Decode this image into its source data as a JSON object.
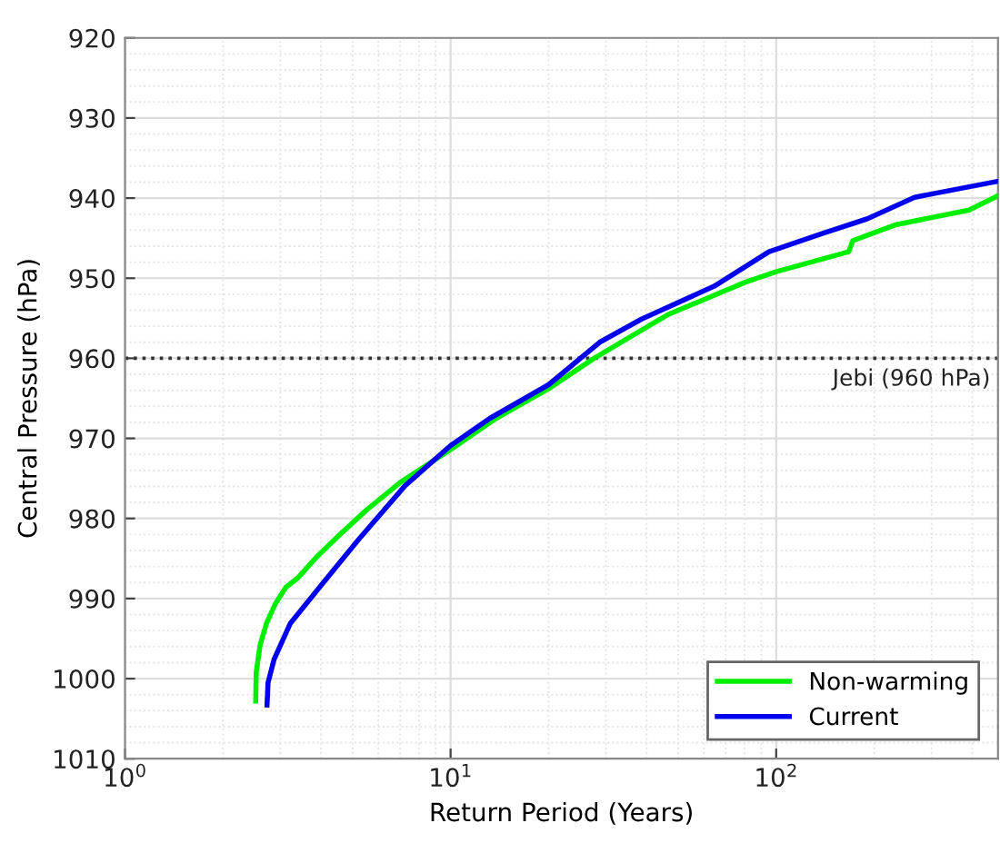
{
  "chart_data": {
    "type": "line",
    "xlabel": "Return Period (Years)",
    "ylabel": "Central Pressure (hPa)",
    "log": "x",
    "xlim": [
      1,
      480
    ],
    "xticks": [
      {
        "value": 1,
        "label": "10$^{0}$"
      },
      {
        "value": 10,
        "label": "10$^{1}$"
      },
      {
        "value": 100,
        "label": "10$^{2}$"
      }
    ],
    "ylim": [
      1010,
      920
    ],
    "yticks": [
      920,
      930,
      940,
      950,
      960,
      970,
      980,
      990,
      1000,
      1010
    ],
    "grid": true,
    "legend": "bottom right",
    "line_style": "solid",
    "marker": "none",
    "ref_lines": [
      {
        "axis": "y",
        "value": 960,
        "label": "Jebi (960 hPa)",
        "color": "#333333",
        "line_style": "dotted"
      }
    ],
    "series": [
      {
        "name": "Non-warming",
        "color": "#00ee00",
        "x": [
          2.52,
          2.53,
          2.6,
          2.72,
          2.9,
          3.12,
          3.4,
          3.9,
          4.6,
          5.5,
          7.0,
          10,
          13.8,
          20,
          27.6,
          46.2,
          80.4,
          100,
          167,
          172,
          234,
          391,
          480
        ],
        "values": [
          1002.8,
          999.2,
          995.8,
          993.1,
          990.6,
          988.6,
          987.4,
          984.7,
          981.9,
          979.0,
          975.5,
          971.4,
          967.5,
          963.8,
          960.0,
          954.6,
          950.5,
          949.2,
          946.7,
          945.3,
          943.3,
          941.5,
          939.7
        ]
      },
      {
        "name": "Current",
        "color": "#0000ee",
        "x": [
          2.73,
          2.75,
          2.87,
          3.22,
          4.01,
          5.2,
          7.25,
          10,
          13.2,
          20,
          28.7,
          38.6,
          64.5,
          95,
          139,
          190,
          266,
          480
        ],
        "values": [
          1003.3,
          1000.5,
          997.6,
          993.1,
          988.3,
          982.7,
          975.9,
          970.9,
          967.5,
          963.3,
          958.0,
          955.1,
          951.0,
          946.7,
          944.4,
          942.6,
          939.9,
          937.9
        ]
      }
    ]
  }
}
